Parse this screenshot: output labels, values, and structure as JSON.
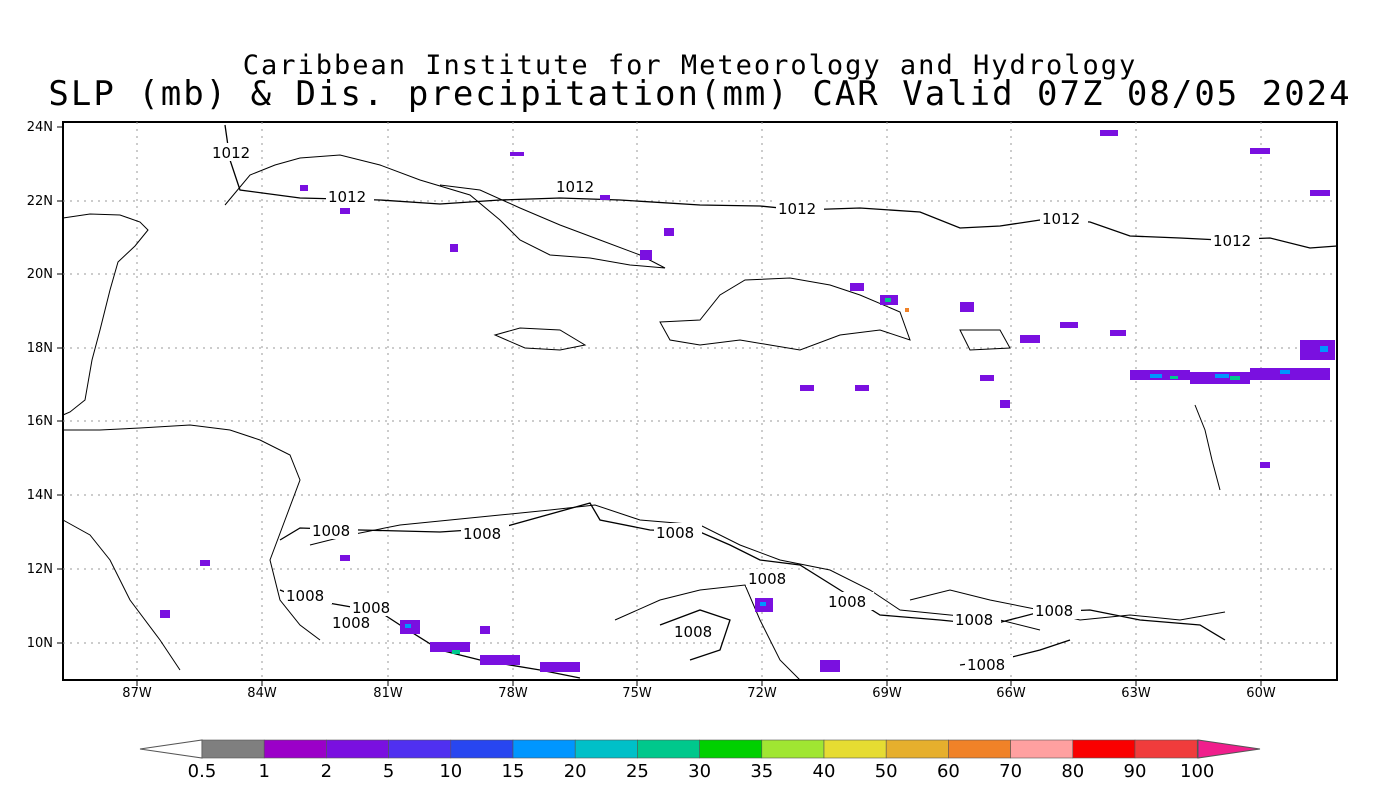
{
  "title_line1": "Caribbean Institute for Meteorology and Hydrology",
  "title_line2": "SLP (mb) & Dis. precipitation(mm) CAR Valid 07Z 08/05 2024",
  "map": {
    "lon_ticks": [
      "87W",
      "84W",
      "81W",
      "78W",
      "75W",
      "72W",
      "69W",
      "66W",
      "63W",
      "60W"
    ],
    "lat_ticks": [
      "24N",
      "22N",
      "20N",
      "18N",
      "16N",
      "14N",
      "12N",
      "10N"
    ],
    "contour_labels": [
      {
        "text": "1012"
      },
      {
        "text": "1012"
      },
      {
        "text": "1012"
      },
      {
        "text": "1012"
      },
      {
        "text": "1012"
      },
      {
        "text": "1012"
      },
      {
        "text": "1008"
      },
      {
        "text": "1008"
      },
      {
        "text": "1008"
      },
      {
        "text": "1008"
      },
      {
        "text": "1008"
      },
      {
        "text": "1008"
      },
      {
        "text": "1008"
      },
      {
        "text": "1008"
      },
      {
        "text": "1008"
      },
      {
        "text": "1008"
      },
      {
        "text": "1008"
      },
      {
        "text": "1008"
      }
    ]
  },
  "colorbar": {
    "labels": [
      "0.5",
      "1",
      "2",
      "5",
      "10",
      "15",
      "20",
      "25",
      "30",
      "35",
      "40",
      "50",
      "60",
      "70",
      "80",
      "90",
      "100"
    ],
    "colors": [
      "#7f7f7f",
      "#9b00c8",
      "#7a10e0",
      "#5030f0",
      "#2846f0",
      "#0096ff",
      "#00c0c8",
      "#00c88c",
      "#00d000",
      "#a0e632",
      "#e6dc32",
      "#e6af2d",
      "#f08228",
      "#ffa0a0",
      "#fa0000",
      "#f03c3c",
      "#f01e8c"
    ]
  }
}
